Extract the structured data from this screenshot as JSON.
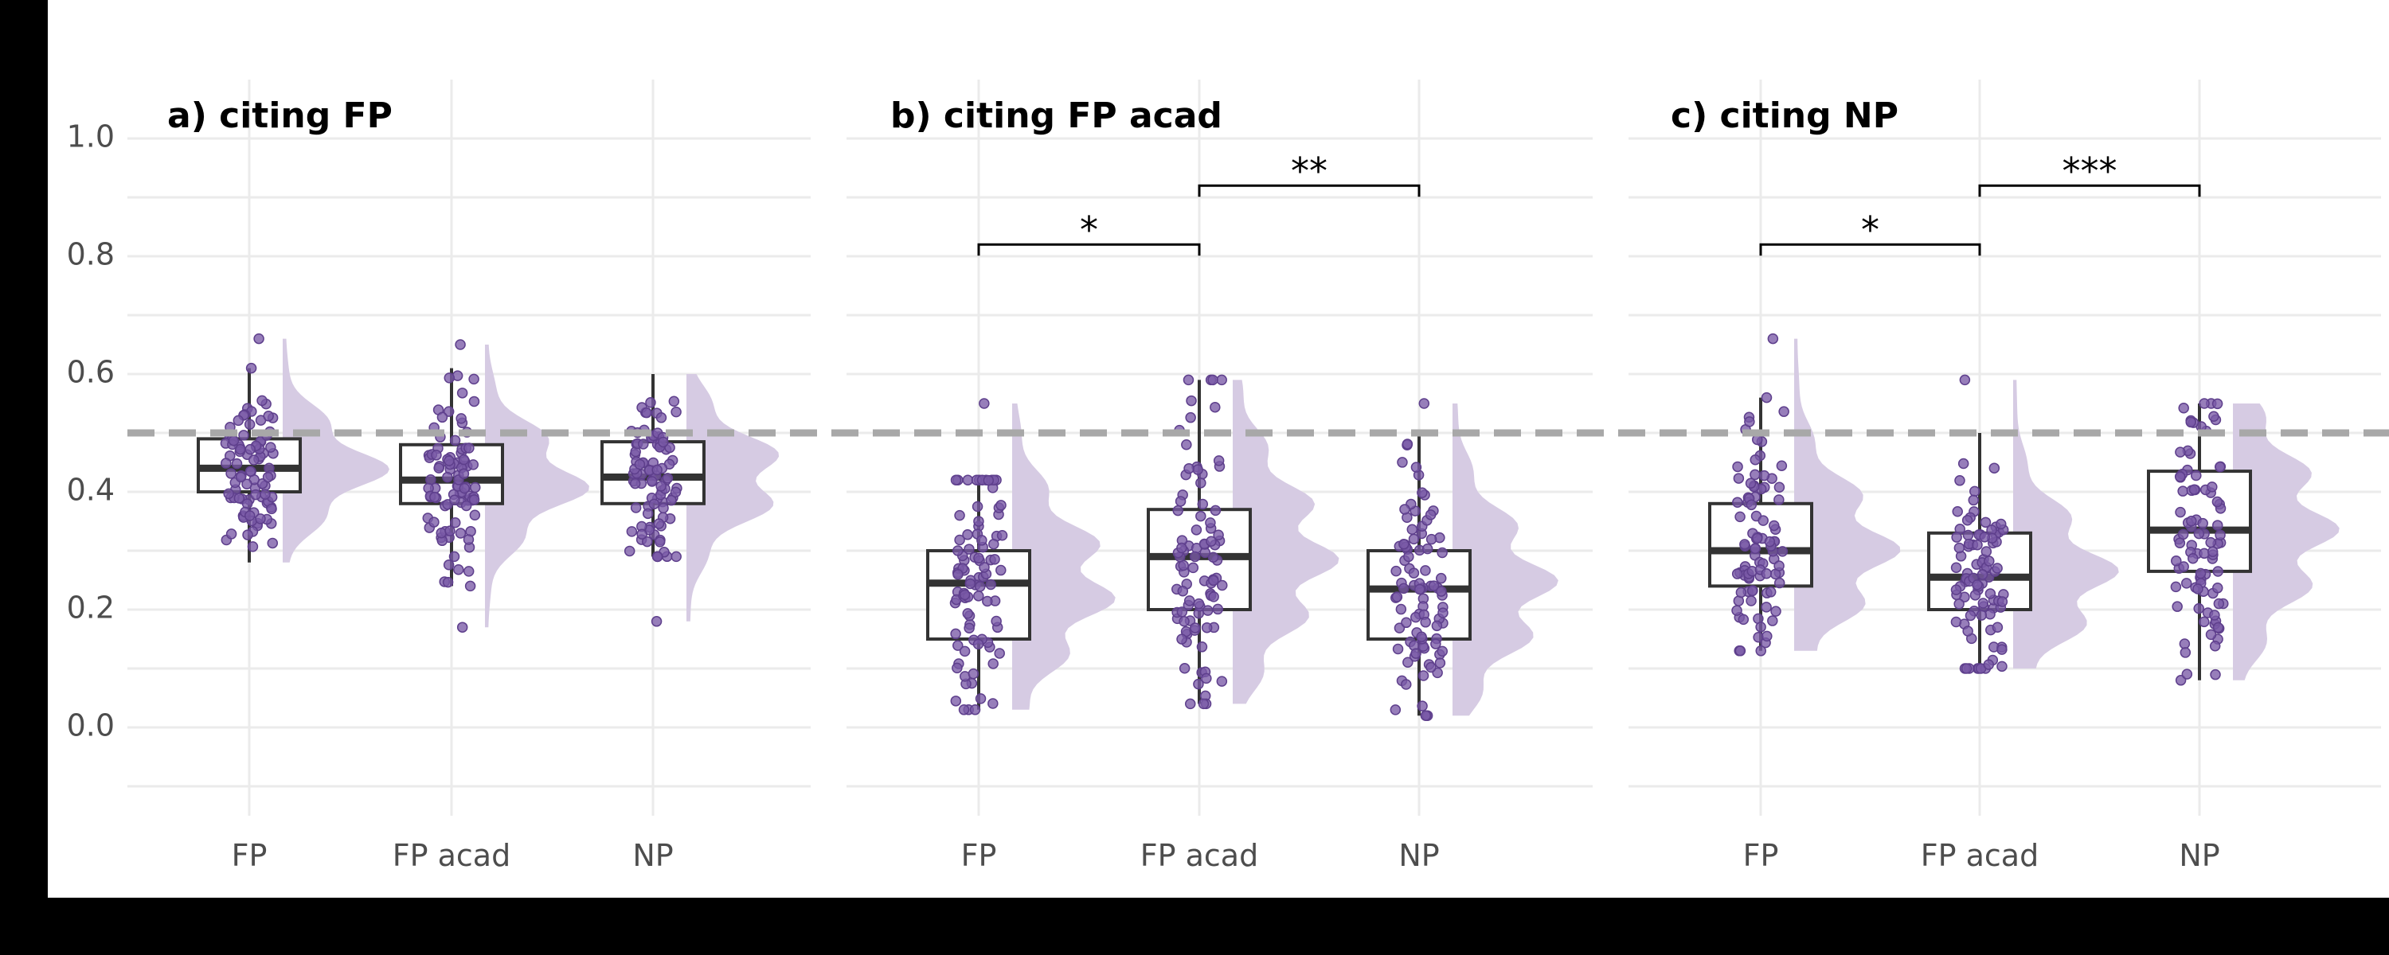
{
  "chart_data": {
    "type": "box",
    "reference_line": 0.5,
    "ylim": [
      -0.15,
      1.1
    ],
    "yticks": [
      "0.0",
      "0.2",
      "0.4",
      "0.6",
      "0.8",
      "1.0"
    ],
    "ytick_values": [
      0.0,
      0.2,
      0.4,
      0.6,
      0.8,
      1.0
    ],
    "panels": [
      {
        "title": "a) citing FP",
        "categories": [
          "FP",
          "FP acad",
          "NP"
        ],
        "groups": [
          {
            "name": "FP",
            "min": 0.28,
            "q1": 0.4,
            "median": 0.44,
            "q3": 0.49,
            "max": 0.61,
            "outliers": [
              0.66
            ],
            "n": 90
          },
          {
            "name": "FP acad",
            "min": 0.24,
            "q1": 0.38,
            "median": 0.42,
            "q3": 0.48,
            "max": 0.61,
            "outliers": [
              0.65,
              0.17
            ],
            "n": 90
          },
          {
            "name": "NP",
            "min": 0.29,
            "q1": 0.38,
            "median": 0.425,
            "q3": 0.485,
            "max": 0.6,
            "outliers": [
              0.18
            ],
            "n": 90
          }
        ],
        "significance": []
      },
      {
        "title": "b) citing FP acad",
        "categories": [
          "FP",
          "FP acad",
          "NP"
        ],
        "groups": [
          {
            "name": "FP",
            "min": 0.03,
            "q1": 0.15,
            "median": 0.245,
            "q3": 0.3,
            "max": 0.42,
            "outliers": [
              0.55
            ],
            "n": 90
          },
          {
            "name": "FP acad",
            "min": 0.04,
            "q1": 0.2,
            "median": 0.29,
            "q3": 0.37,
            "max": 0.59,
            "outliers": [],
            "n": 90
          },
          {
            "name": "NP",
            "min": 0.02,
            "q1": 0.15,
            "median": 0.235,
            "q3": 0.3,
            "max": 0.5,
            "outliers": [
              0.55
            ],
            "n": 90
          }
        ],
        "significance": [
          {
            "from": 0,
            "to": 1,
            "label": "*",
            "y": 0.82
          },
          {
            "from": 1,
            "to": 2,
            "label": "**",
            "y": 0.92
          }
        ]
      },
      {
        "title": "c) citing NP",
        "categories": [
          "FP",
          "FP acad",
          "NP"
        ],
        "groups": [
          {
            "name": "FP",
            "min": 0.13,
            "q1": 0.24,
            "median": 0.3,
            "q3": 0.38,
            "max": 0.56,
            "outliers": [
              0.66
            ],
            "n": 90
          },
          {
            "name": "FP acad",
            "min": 0.1,
            "q1": 0.2,
            "median": 0.255,
            "q3": 0.33,
            "max": 0.5,
            "outliers": [
              0.59
            ],
            "n": 90
          },
          {
            "name": "NP",
            "min": 0.08,
            "q1": 0.265,
            "median": 0.335,
            "q3": 0.435,
            "max": 0.55,
            "outliers": [],
            "n": 90
          }
        ],
        "significance": [
          {
            "from": 0,
            "to": 1,
            "label": "*",
            "y": 0.82
          },
          {
            "from": 1,
            "to": 2,
            "label": "***",
            "y": 0.92
          }
        ]
      }
    ],
    "colors": {
      "points": "#7a5aa6",
      "violin": "#d6cbe3",
      "box": "#333333",
      "reference": "#a8a8a8"
    },
    "grid": true,
    "legend": "none"
  }
}
